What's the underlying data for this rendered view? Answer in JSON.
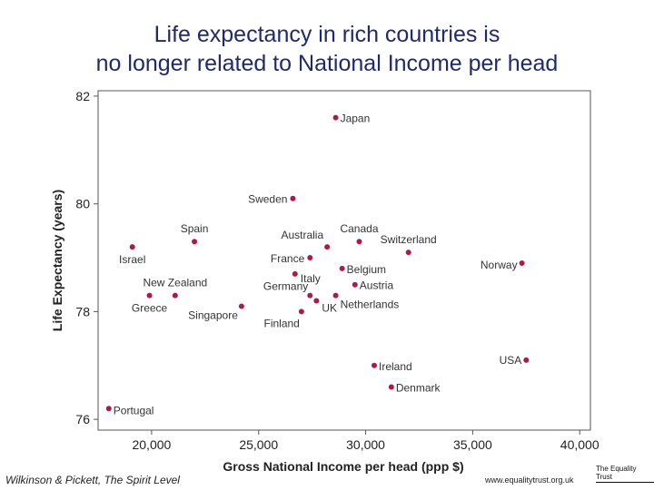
{
  "title_line1": "Life expectancy in rich countries is",
  "title_line2": "no longer related to National Income per head",
  "footer": {
    "citation": "Wilkinson & Pickett, The Spirit Level",
    "url": "www.equalitytrust.org.uk",
    "logo": "The Equality Trust"
  },
  "chart_data": {
    "type": "scatter",
    "xlabel": "Gross National Income per head (ppp $)",
    "ylabel": "Life Expectancy (years)",
    "xlim": [
      17500,
      40500
    ],
    "ylim": [
      75.8,
      82.1
    ],
    "xticks": [
      20000,
      25000,
      30000,
      35000,
      40000
    ],
    "xtick_labels": [
      "20,000",
      "25,000",
      "30,000",
      "35,000",
      "40,000"
    ],
    "yticks": [
      76,
      78,
      80,
      82
    ],
    "ytick_labels": [
      "76",
      "78",
      "80",
      "82"
    ],
    "grid": false,
    "marker_color": "#b0174a",
    "points": [
      {
        "label": "Japan",
        "x": 28600,
        "y": 81.6
      },
      {
        "label": "Sweden",
        "x": 26600,
        "y": 80.1
      },
      {
        "label": "Spain",
        "x": 22000,
        "y": 79.3
      },
      {
        "label": "Israel",
        "x": 19100,
        "y": 79.2
      },
      {
        "label": "Canada",
        "x": 29700,
        "y": 79.3
      },
      {
        "label": "Australia",
        "x": 28200,
        "y": 79.2
      },
      {
        "label": "Switzerland",
        "x": 32000,
        "y": 79.1
      },
      {
        "label": "France",
        "x": 27400,
        "y": 79.0
      },
      {
        "label": "Norway",
        "x": 37300,
        "y": 78.9
      },
      {
        "label": "Belgium",
        "x": 28900,
        "y": 78.8
      },
      {
        "label": "Italy",
        "x": 26700,
        "y": 78.7
      },
      {
        "label": "Austria",
        "x": 29500,
        "y": 78.5
      },
      {
        "label": "New Zealand",
        "x": 21100,
        "y": 78.3
      },
      {
        "label": "Greece",
        "x": 19900,
        "y": 78.3
      },
      {
        "label": "Germany",
        "x": 27400,
        "y": 78.3
      },
      {
        "label": "Netherlands",
        "x": 28600,
        "y": 78.3
      },
      {
        "label": "UK",
        "x": 27700,
        "y": 78.2
      },
      {
        "label": "Singapore",
        "x": 24200,
        "y": 78.1
      },
      {
        "label": "Finland",
        "x": 27000,
        "y": 78.0
      },
      {
        "label": "USA",
        "x": 37500,
        "y": 77.1
      },
      {
        "label": "Ireland",
        "x": 30400,
        "y": 77.0
      },
      {
        "label": "Denmark",
        "x": 31200,
        "y": 76.6
      },
      {
        "label": "Portugal",
        "x": 18000,
        "y": 76.2
      }
    ]
  }
}
